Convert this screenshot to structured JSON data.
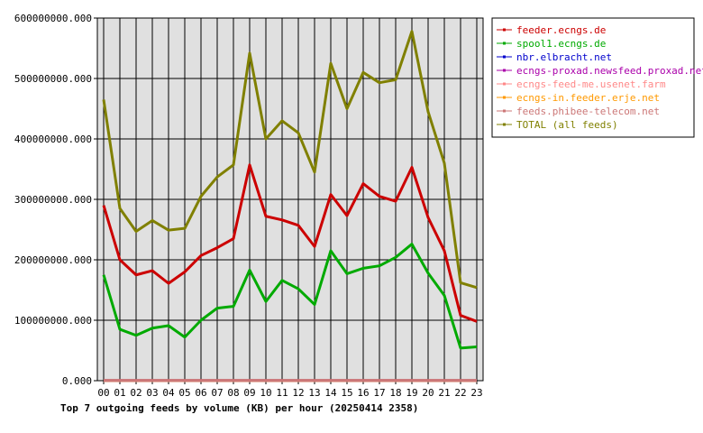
{
  "chart_data": {
    "type": "line",
    "title": "Top 7 outgoing feeds by volume (KB) per hour (20250414 2358)",
    "categories": [
      "00",
      "01",
      "02",
      "03",
      "04",
      "05",
      "06",
      "07",
      "08",
      "09",
      "10",
      "11",
      "12",
      "13",
      "14",
      "15",
      "16",
      "17",
      "18",
      "19",
      "20",
      "21",
      "22",
      "23"
    ],
    "ylim": [
      0,
      600000000
    ],
    "yticks": [
      "0.000",
      "100000000.000",
      "200000000.000",
      "300000000.000",
      "400000000.000",
      "500000000.000",
      "600000000.000"
    ],
    "ytick_values": [
      0,
      100000000,
      200000000,
      300000000,
      400000000,
      500000000,
      600000000
    ],
    "grid": true,
    "legend_position": "right",
    "plot_background": "#e0e0e0",
    "series": [
      {
        "name": "feeder.ecngs.de",
        "color": "#cc0000",
        "values": [
          290000000,
          200000000,
          175000000,
          182000000,
          161000000,
          180000000,
          207000000,
          220000000,
          235000000,
          357000000,
          272000000,
          266000000,
          257000000,
          222000000,
          308000000,
          273000000,
          326000000,
          305000000,
          297000000,
          353000000,
          270000000,
          215000000,
          108000000,
          98000000
        ]
      },
      {
        "name": "spool1.ecngs.de",
        "color": "#00aa00",
        "values": [
          175000000,
          85000000,
          75000000,
          87000000,
          91000000,
          72000000,
          100000000,
          120000000,
          123000000,
          183000000,
          131000000,
          166000000,
          152000000,
          126000000,
          215000000,
          177000000,
          186000000,
          190000000,
          204000000,
          226000000,
          178000000,
          141000000,
          54000000,
          56000000
        ]
      },
      {
        "name": "nbr.elbracht.net",
        "color": "#0000cc",
        "values": [
          100000,
          100000,
          100000,
          100000,
          100000,
          100000,
          100000,
          100000,
          100000,
          100000,
          100000,
          100000,
          100000,
          100000,
          100000,
          100000,
          100000,
          100000,
          100000,
          100000,
          100000,
          100000,
          100000,
          100000
        ]
      },
      {
        "name": "ecngs-proxad.newsfeed.proxad.net",
        "color": "#aa00aa",
        "values": [
          100000,
          100000,
          100000,
          100000,
          100000,
          100000,
          100000,
          100000,
          100000,
          100000,
          100000,
          100000,
          100000,
          100000,
          100000,
          100000,
          100000,
          100000,
          100000,
          100000,
          100000,
          100000,
          100000,
          100000
        ]
      },
      {
        "name": "ecngs-feed-me.usenet.farm",
        "color": "#ff8888",
        "values": [
          100000,
          100000,
          100000,
          100000,
          100000,
          100000,
          100000,
          100000,
          100000,
          100000,
          100000,
          100000,
          100000,
          100000,
          100000,
          100000,
          100000,
          100000,
          100000,
          100000,
          100000,
          100000,
          100000,
          100000
        ]
      },
      {
        "name": "ecngs-in.feeder.erje.net",
        "color": "#ff9900",
        "values": [
          100000,
          100000,
          100000,
          100000,
          100000,
          100000,
          100000,
          100000,
          100000,
          100000,
          100000,
          100000,
          100000,
          100000,
          100000,
          100000,
          100000,
          100000,
          100000,
          100000,
          100000,
          100000,
          100000,
          100000
        ]
      },
      {
        "name": "feeds.phibee-telecom.net",
        "color": "#cc7777",
        "values": [
          100000,
          100000,
          100000,
          100000,
          100000,
          100000,
          100000,
          100000,
          100000,
          100000,
          100000,
          100000,
          100000,
          100000,
          100000,
          100000,
          100000,
          100000,
          100000,
          100000,
          100000,
          100000,
          100000,
          100000
        ]
      },
      {
        "name": "TOTAL (all feeds)",
        "color": "#808000",
        "values": [
          465000000,
          285000000,
          247000000,
          265000000,
          249000000,
          252000000,
          305000000,
          337000000,
          357000000,
          542000000,
          400000000,
          430000000,
          410000000,
          345000000,
          525000000,
          450000000,
          510000000,
          493000000,
          498000000,
          578000000,
          445000000,
          360000000,
          162000000,
          154000000
        ]
      }
    ]
  }
}
